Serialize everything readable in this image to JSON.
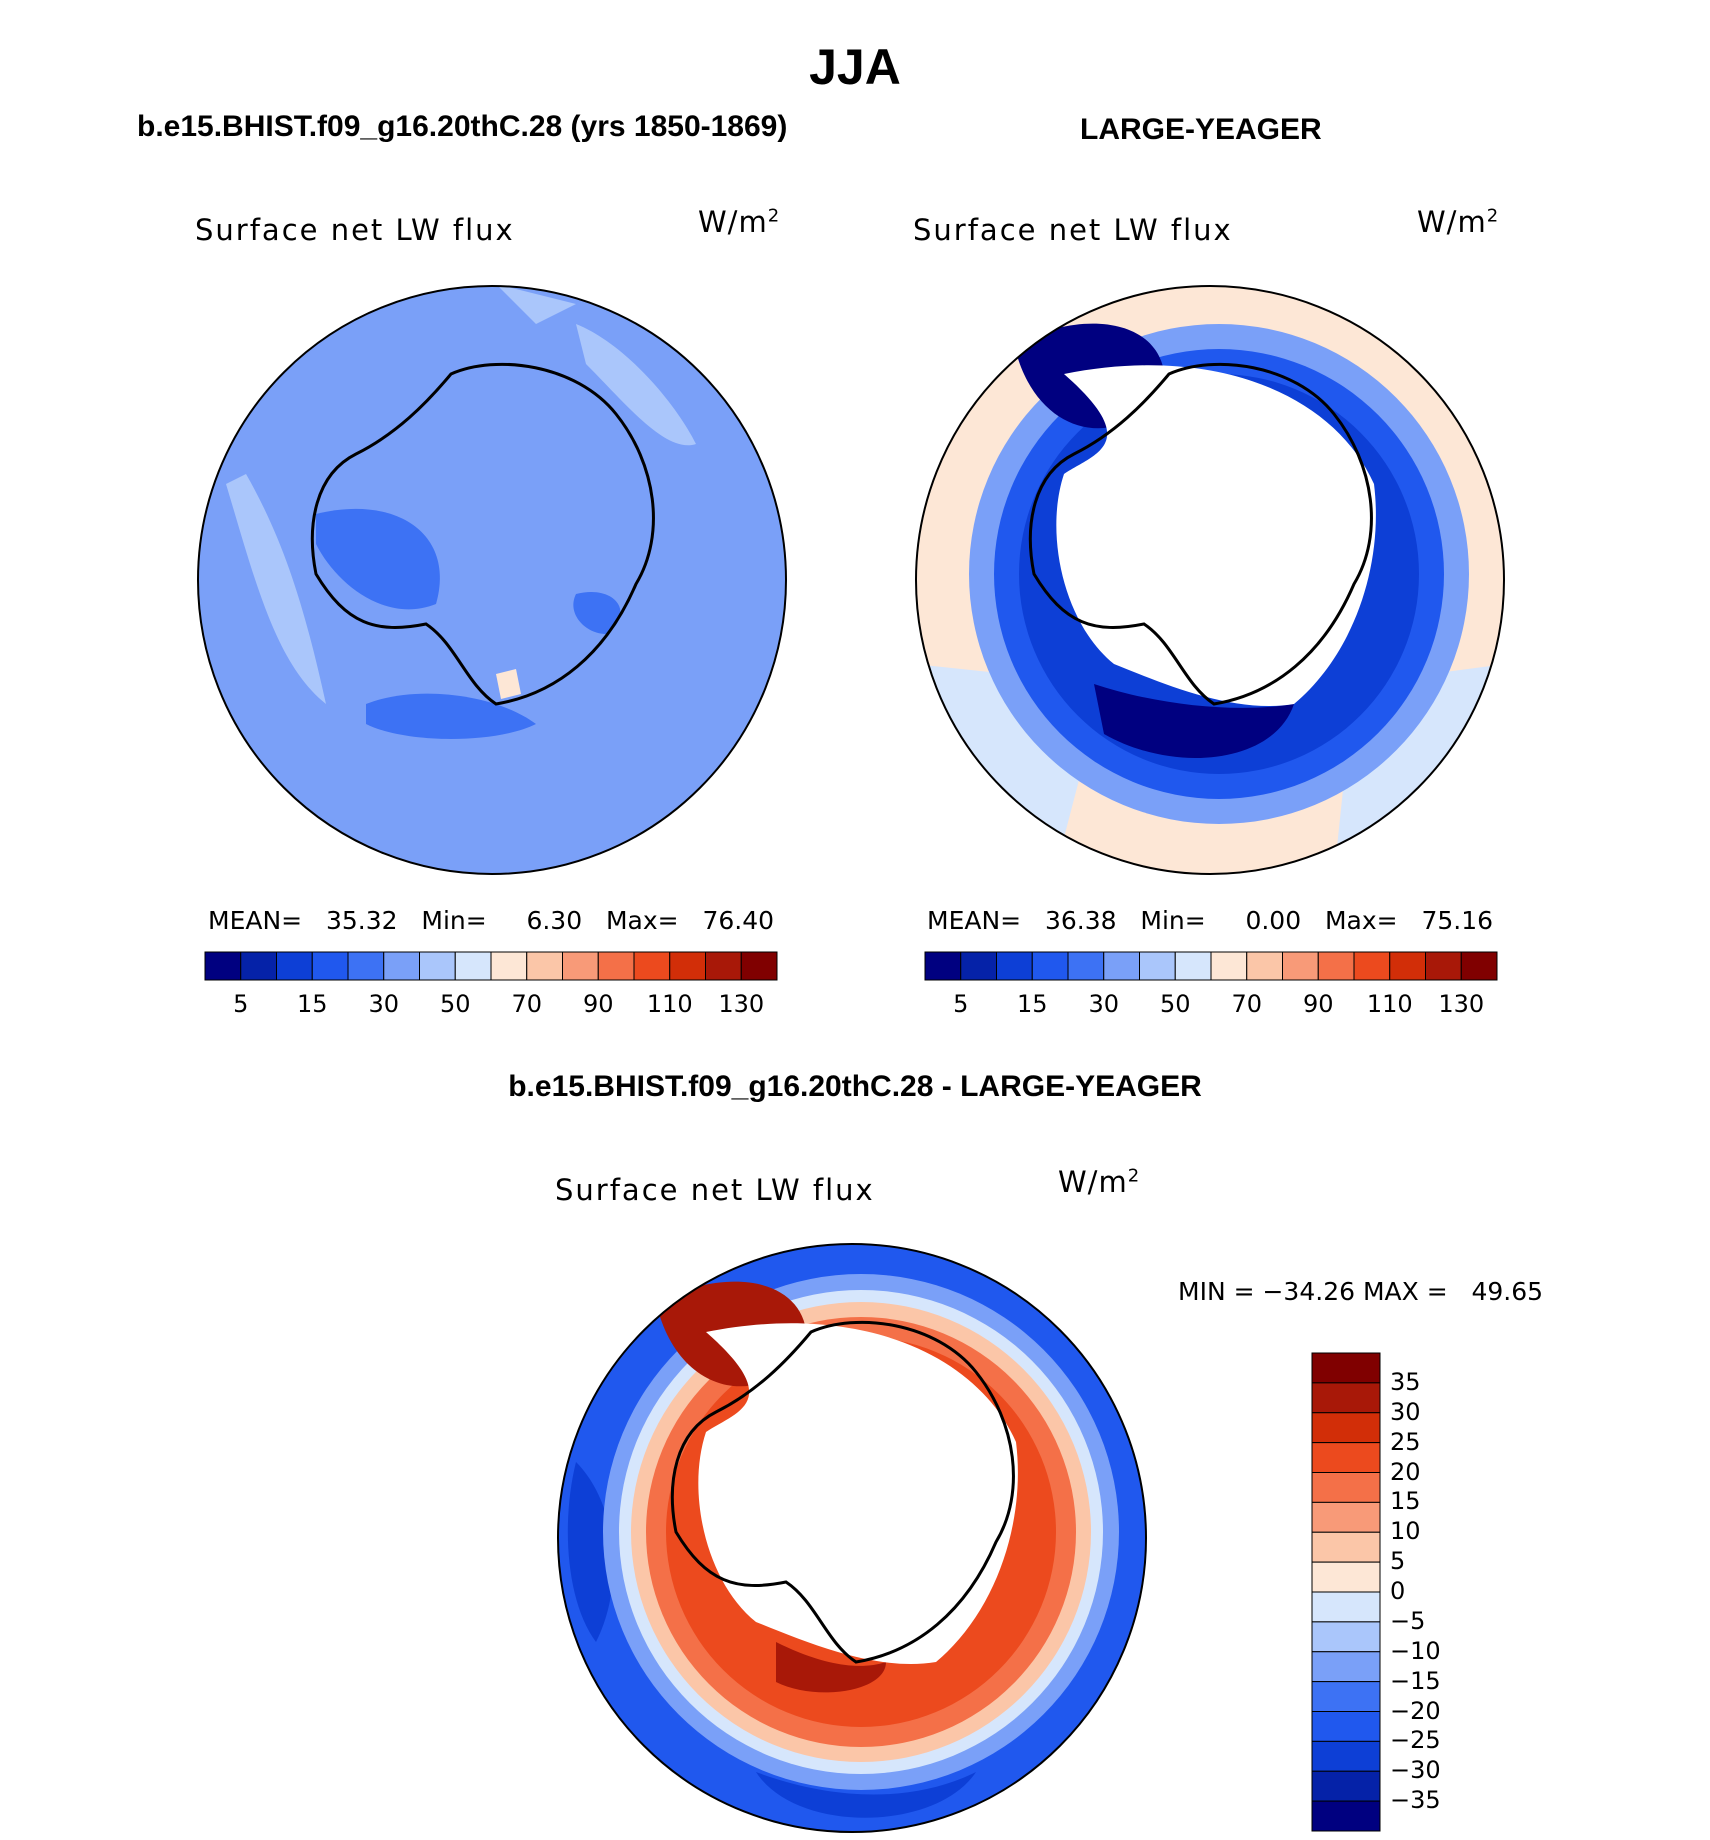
{
  "title": "JJA",
  "panels": [
    {
      "case": "b.e15.BHIST.f09_g16.20thC.28 (yrs 1850-1869)",
      "variable": "Surface net LW flux",
      "units": "W/m",
      "units_sup": "2",
      "stats": {
        "mean_label": "MEAN=",
        "mean": "35.32",
        "min_label": "Min=",
        "min": "6.30",
        "max_label": "Max=",
        "max": "76.40"
      }
    },
    {
      "case": "LARGE-YEAGER",
      "variable": "Surface net LW flux",
      "units": "W/m",
      "units_sup": "2",
      "stats": {
        "mean_label": "MEAN=",
        "mean": "36.38",
        "min_label": "Min=",
        "min": "0.00",
        "max_label": "Max=",
        "max": "75.16"
      }
    }
  ],
  "diff_panel": {
    "title": "b.e15.BHIST.f09_g16.20thC.28 - LARGE-YEAGER",
    "variable": "Surface net LW flux",
    "units": "W/m",
    "units_sup": "2",
    "minmax": "MIN = −34.26 MAX =   49.65"
  },
  "abs_colorbar": {
    "tick_labels": [
      "5",
      "15",
      "30",
      "50",
      "70",
      "90",
      "110",
      "130"
    ],
    "colors": [
      "#000080",
      "#0522a8",
      "#0d3fd6",
      "#2058ee",
      "#3d72f4",
      "#7aa0f8",
      "#aac6fb",
      "#d6e6fc",
      "#fde7d6",
      "#fbc6a8",
      "#f89a78",
      "#f47048",
      "#ec4a1e",
      "#d22e08",
      "#a81808",
      "#800000"
    ]
  },
  "diff_colorbar": {
    "tick_labels": [
      "35",
      "30",
      "25",
      "20",
      "15",
      "10",
      "5",
      "0",
      "−5",
      "−10",
      "−15",
      "−20",
      "−25",
      "−30",
      "−35"
    ],
    "colors": [
      "#800000",
      "#a81808",
      "#d22e08",
      "#ec4a1e",
      "#f47048",
      "#f89a78",
      "#fbc6a8",
      "#fde7d6",
      "#d6e6fc",
      "#aac6fb",
      "#7aa0f8",
      "#3d72f4",
      "#2058ee",
      "#0d3fd6",
      "#0522a8",
      "#000080"
    ]
  }
}
